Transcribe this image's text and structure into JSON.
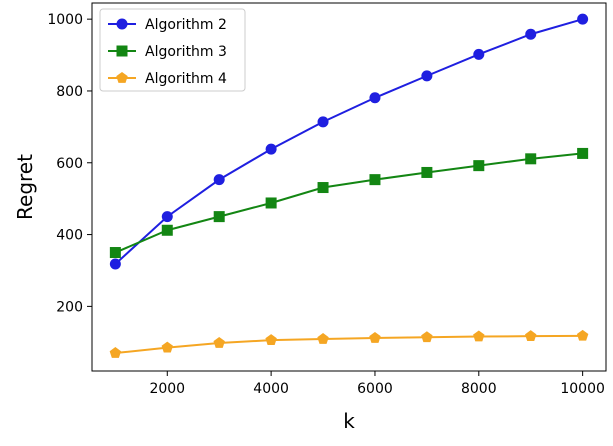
{
  "chart_data": {
    "type": "line",
    "title": "",
    "xlabel": "k",
    "ylabel": "Regret",
    "xlim": [
      550,
      10450
    ],
    "ylim": [
      20,
      1045
    ],
    "xticks": [
      2000,
      4000,
      6000,
      8000,
      10000
    ],
    "yticks": [
      200,
      400,
      600,
      800,
      1000
    ],
    "grid": false,
    "legend": "top-left",
    "x": [
      1000,
      2000,
      3000,
      4000,
      5000,
      6000,
      7000,
      8000,
      9000,
      10000
    ],
    "series": [
      {
        "name": "Algorithm 2",
        "color": "#1f1fe0",
        "marker": "circle",
        "values": [
          318,
          450,
          553,
          638,
          714,
          781,
          842,
          902,
          958,
          1000
        ]
      },
      {
        "name": "Algorithm 3",
        "color": "#138613",
        "marker": "square",
        "values": [
          350,
          412,
          450,
          488,
          531,
          553,
          573,
          592,
          611,
          626
        ]
      },
      {
        "name": "Algorithm 4",
        "color": "#f5a623",
        "marker": "pentagon",
        "values": [
          70,
          85,
          98,
          106,
          109,
          112,
          114,
          116,
          117,
          118
        ]
      }
    ]
  }
}
